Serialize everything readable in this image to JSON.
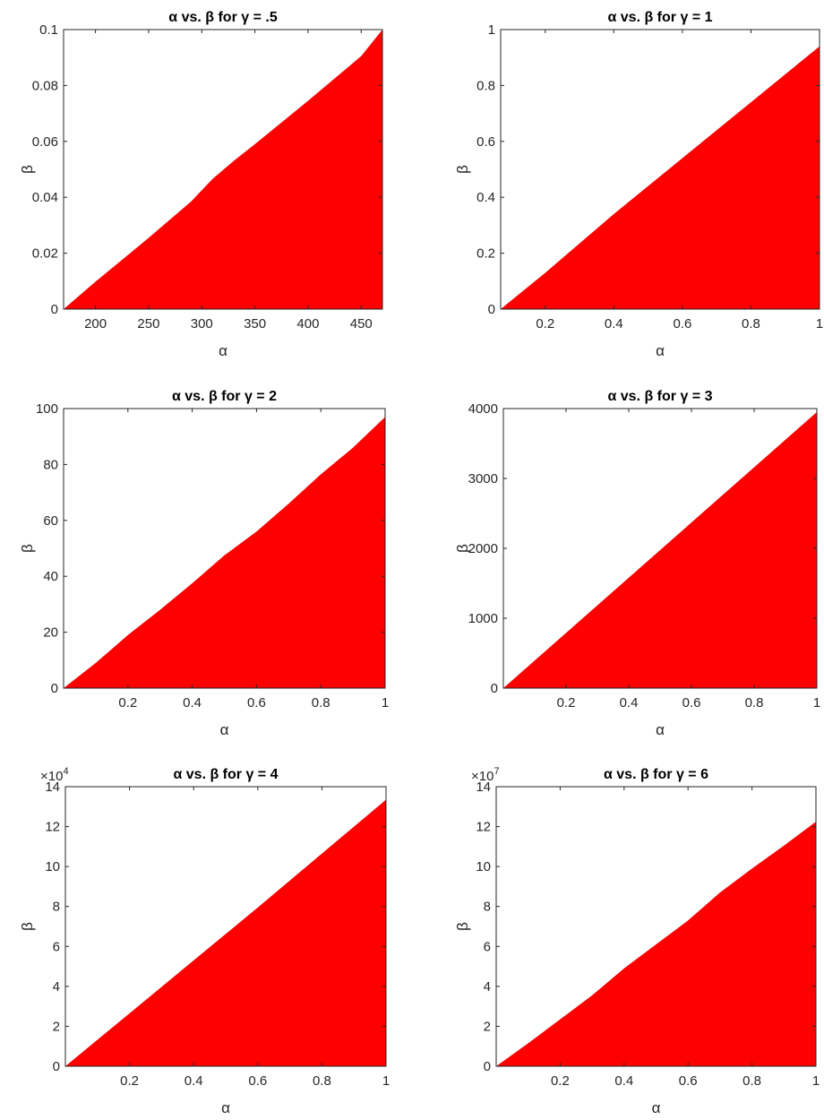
{
  "chart_data": [
    {
      "type": "area",
      "title": "α vs. β for γ = .5",
      "xlabel": "α",
      "ylabel": "β",
      "xlim": [
        170,
        470
      ],
      "ylim": [
        0,
        0.1
      ],
      "xticks": [
        200,
        250,
        300,
        350,
        400,
        450
      ],
      "xtick_labels": [
        "200",
        "250",
        "300",
        "350",
        "400",
        "450"
      ],
      "yticks": [
        0,
        0.02,
        0.04,
        0.06,
        0.08,
        0.1
      ],
      "ytick_labels": [
        "0",
        "0.02",
        "0.04",
        "0.06",
        "0.08",
        "0.1"
      ],
      "exponent_label": "",
      "color": "#ff0000",
      "grid": false,
      "x": [
        170,
        200,
        250,
        290,
        310,
        330,
        350,
        400,
        450,
        470
      ],
      "y": [
        0,
        0.0098,
        0.0255,
        0.0385,
        0.0465,
        0.053,
        0.059,
        0.0745,
        0.0905,
        0.1
      ]
    },
    {
      "type": "area",
      "title": "α vs. β for γ = 1",
      "xlabel": "α",
      "ylabel": "β",
      "xlim": [
        0.07,
        1
      ],
      "ylim": [
        0,
        1
      ],
      "xticks": [
        0.2,
        0.4,
        0.6,
        0.8,
        1
      ],
      "xtick_labels": [
        "0.2",
        "0.4",
        "0.6",
        "0.8",
        "1"
      ],
      "yticks": [
        0,
        0.2,
        0.4,
        0.6,
        0.8,
        1
      ],
      "ytick_labels": [
        "0",
        "0.2",
        "0.4",
        "0.6",
        "0.8",
        "1"
      ],
      "exponent_label": "",
      "color": "#ff0000",
      "grid": false,
      "x": [
        0.07,
        0.1,
        0.2,
        0.4,
        0.6,
        0.8,
        1
      ],
      "y": [
        0,
        0.03,
        0.13,
        0.34,
        0.54,
        0.74,
        0.94
      ]
    },
    {
      "type": "area",
      "title": "α vs. β for γ = 2",
      "xlabel": "α",
      "ylabel": "β",
      "xlim": [
        0,
        1
      ],
      "ylim": [
        0,
        100
      ],
      "xticks": [
        0.2,
        0.4,
        0.6,
        0.8,
        1
      ],
      "xtick_labels": [
        "0.2",
        "0.4",
        "0.6",
        "0.8",
        "1"
      ],
      "yticks": [
        0,
        20,
        40,
        60,
        80,
        100
      ],
      "ytick_labels": [
        "0",
        "20",
        "40",
        "60",
        "80",
        "100"
      ],
      "exponent_label": "",
      "color": "#ff0000",
      "grid": false,
      "x": [
        0,
        0.1,
        0.2,
        0.3,
        0.4,
        0.5,
        0.6,
        0.7,
        0.8,
        0.9,
        1
      ],
      "y": [
        0,
        9,
        19,
        28,
        37.5,
        47.5,
        56,
        66,
        76.5,
        86,
        97
      ]
    },
    {
      "type": "area",
      "title": "α vs. β for γ = 3",
      "xlabel": "α",
      "ylabel": "β",
      "xlim": [
        0,
        1
      ],
      "ylim": [
        0,
        4000
      ],
      "xticks": [
        0.2,
        0.4,
        0.6,
        0.8,
        1
      ],
      "xtick_labels": [
        "0.2",
        "0.4",
        "0.6",
        "0.8",
        "1"
      ],
      "yticks": [
        0,
        1000,
        2000,
        3000,
        4000
      ],
      "ytick_labels": [
        "0",
        "1000",
        "2000",
        "3000",
        "4000"
      ],
      "exponent_label": "",
      "color": "#ff0000",
      "grid": false,
      "x": [
        0,
        0.2,
        0.4,
        0.6,
        0.8,
        1
      ],
      "y": [
        0,
        790,
        1580,
        2370,
        3160,
        3950
      ]
    },
    {
      "type": "area",
      "title": "α vs. β for γ = 4",
      "xlabel": "α",
      "ylabel": "β",
      "xlim": [
        0,
        1
      ],
      "ylim": [
        0,
        14
      ],
      "xticks": [
        0.2,
        0.4,
        0.6,
        0.8,
        1
      ],
      "xtick_labels": [
        "0.2",
        "0.4",
        "0.6",
        "0.8",
        "1"
      ],
      "yticks": [
        0,
        2,
        4,
        6,
        8,
        10,
        12,
        14
      ],
      "ytick_labels": [
        "0",
        "2",
        "4",
        "6",
        "8",
        "10",
        "12",
        "14"
      ],
      "exponent_label": "×10",
      "exponent_power": "4",
      "y_multiplier": 10000,
      "color": "#ff0000",
      "grid": false,
      "x": [
        0,
        0.2,
        0.4,
        0.6,
        0.8,
        1
      ],
      "y": [
        0,
        2.65,
        5.3,
        7.95,
        10.65,
        13.35
      ]
    },
    {
      "type": "area",
      "title": "α vs. β for γ = 6",
      "xlabel": "α",
      "ylabel": "β",
      "xlim": [
        0,
        1
      ],
      "ylim": [
        0,
        14
      ],
      "xticks": [
        0.2,
        0.4,
        0.6,
        0.8,
        1
      ],
      "xtick_labels": [
        "0.2",
        "0.4",
        "0.6",
        "0.8",
        "1"
      ],
      "yticks": [
        0,
        2,
        4,
        6,
        8,
        10,
        12,
        14
      ],
      "ytick_labels": [
        "0",
        "2",
        "4",
        "6",
        "8",
        "10",
        "12",
        "14"
      ],
      "exponent_label": "×10",
      "exponent_power": "7",
      "y_multiplier": 10000000,
      "color": "#ff0000",
      "grid": false,
      "x": [
        0,
        0.1,
        0.2,
        0.3,
        0.4,
        0.5,
        0.6,
        0.7,
        0.8,
        0.9,
        1
      ],
      "y": [
        0,
        1.15,
        2.35,
        3.55,
        4.9,
        6.1,
        7.3,
        8.7,
        9.9,
        11.05,
        12.25
      ]
    }
  ]
}
